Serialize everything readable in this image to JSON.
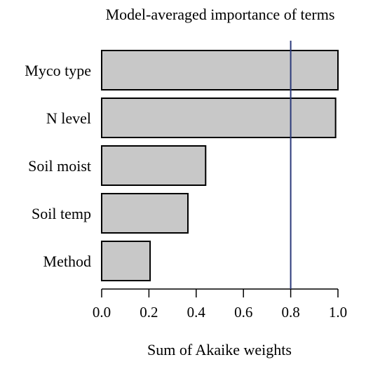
{
  "chart_data": {
    "type": "bar",
    "orientation": "horizontal",
    "title": "Model-averaged importance of terms",
    "xlabel": "Sum of Akaike weights",
    "ylabel": "",
    "categories": [
      "Myco type",
      "N level",
      "Soil moist",
      "Soil temp",
      "Method"
    ],
    "values": [
      1.0,
      0.99,
      0.44,
      0.365,
      0.205
    ],
    "xlim": [
      0,
      1
    ],
    "x_ticks": [
      "0.0",
      "0.2",
      "0.4",
      "0.6",
      "0.8",
      "1.0"
    ],
    "reference_line": {
      "x": 0.8,
      "color": "#2b3a7a"
    },
    "bar_color": "#c8c8c8",
    "bar_edge_color": "#000000",
    "grid": false,
    "legend": "none"
  }
}
